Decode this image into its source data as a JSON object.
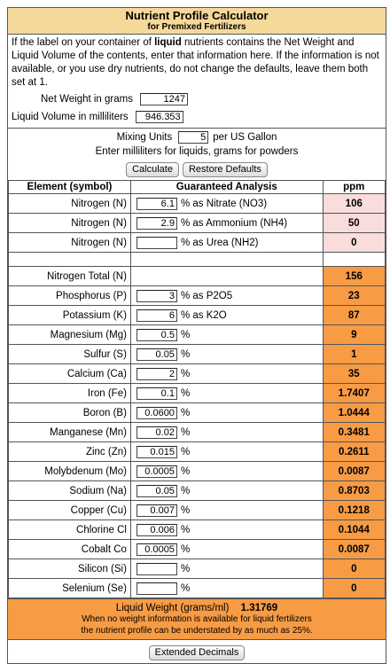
{
  "header": {
    "title": "Nutrient Profile Calculator",
    "subtitle": "for Premixed Fertilizers"
  },
  "info": {
    "pre": "If the label on your container of ",
    "bold": "liquid",
    "post": " nutrients contains the Net Weight and Liquid Volume of the contents, enter that information here. If the information is not available, or you use dry nutrients, do not change the defaults, leave them both set at 1."
  },
  "net_weight": {
    "label": "Net Weight in grams",
    "value": "1247"
  },
  "liquid_volume": {
    "label": "Liquid Volume in milliliters",
    "value": "946.353"
  },
  "mixing": {
    "label": "Mixing Units",
    "value": "5",
    "unit": "per US Gallon",
    "hint": "Enter milliliters for liquids, grams for powders"
  },
  "buttons": {
    "calculate": "Calculate",
    "restore": "Restore Defaults",
    "extended": "Extended Decimals"
  },
  "table": {
    "headers": {
      "element": "Element (symbol)",
      "analysis": "Guaranteed Analysis",
      "ppm": "ppm"
    },
    "nitrogen_rows": [
      {
        "element": "Nitrogen (N)",
        "value": "6.1",
        "suffix": "% as Nitrate (NO3)",
        "ppm": "106"
      },
      {
        "element": "Nitrogen (N)",
        "value": "2.9",
        "suffix": "% as Ammonium (NH4)",
        "ppm": "50"
      },
      {
        "element": "Nitrogen (N)",
        "value": "",
        "suffix": "% as Urea (NH2)",
        "ppm": "0"
      }
    ],
    "total": {
      "element": "Nitrogen Total (N)",
      "ppm": "156"
    },
    "rows": [
      {
        "element": "Phosphorus (P)",
        "value": "3",
        "suffix": "% as P2O5",
        "ppm": "23"
      },
      {
        "element": "Potassium (K)",
        "value": "6",
        "suffix": "% as K2O",
        "ppm": "87"
      },
      {
        "element": "Magnesium (Mg)",
        "value": "0.5",
        "suffix": "%",
        "ppm": "9"
      },
      {
        "element": "Sulfur (S)",
        "value": "0.05",
        "suffix": "%",
        "ppm": "1"
      },
      {
        "element": "Calcium (Ca)",
        "value": "2",
        "suffix": "%",
        "ppm": "35"
      },
      {
        "element": "Iron (Fe)",
        "value": "0.1",
        "suffix": "%",
        "ppm": "1.7407"
      },
      {
        "element": "Boron (B)",
        "value": "0.0600",
        "suffix": "%",
        "ppm": "1.0444"
      },
      {
        "element": "Manganese (Mn)",
        "value": "0.02",
        "suffix": "%",
        "ppm": "0.3481"
      },
      {
        "element": "Zinc (Zn)",
        "value": "0.015",
        "suffix": "%",
        "ppm": "0.2611"
      },
      {
        "element": "Molybdenum (Mo)",
        "value": "0.0005",
        "suffix": "%",
        "ppm": "0.0087"
      },
      {
        "element": "Sodium (Na)",
        "value": "0.05",
        "suffix": "%",
        "ppm": "0.8703"
      },
      {
        "element": "Copper (Cu)",
        "value": "0.007",
        "suffix": "%",
        "ppm": "0.1218"
      },
      {
        "element": "Chlorine Cl",
        "value": "0.006",
        "suffix": "%",
        "ppm": "0.1044"
      },
      {
        "element": "Cobalt Co",
        "value": "0.0005",
        "suffix": "%",
        "ppm": "0.0087"
      },
      {
        "element": "Silicon (Si)",
        "value": "",
        "suffix": "%",
        "ppm": "0"
      },
      {
        "element": "Selenium (Se)",
        "value": "",
        "suffix": "%",
        "ppm": "0"
      }
    ]
  },
  "footer": {
    "liquid_weight_label": "Liquid Weight (grams/ml)",
    "liquid_weight_value": "1.31769",
    "note_line1": "When no weight information is available for liquid fertilizers",
    "note_line2": "the nutrient profile can be understated by as much as 25%."
  },
  "colors": {
    "title_bg": "#f5d99a",
    "pink": "#f9dcdc",
    "orange": "#f79b45"
  }
}
